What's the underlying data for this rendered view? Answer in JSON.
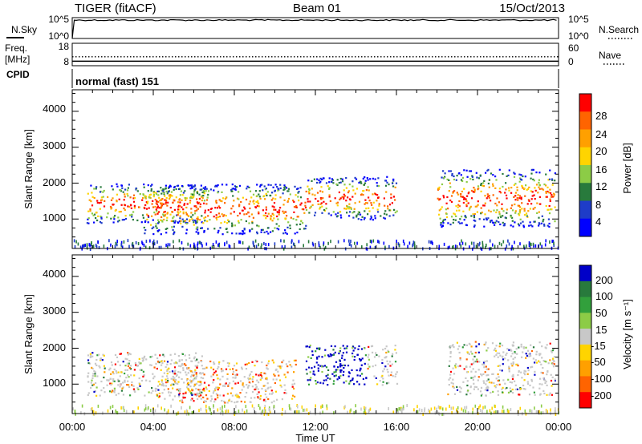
{
  "header": {
    "station": "TIGER (fitACF)",
    "beam": "Beam 01",
    "date": "15/Oct/2013"
  },
  "noise_panel": {
    "left_label": "N.Sky",
    "right_label": "N.Search",
    "left_ticks": [
      "10^5",
      "10^0"
    ],
    "right_ticks": [
      "10^5",
      "10^0"
    ]
  },
  "freq_panel": {
    "left_label_line1": "Freq.",
    "left_label_line2": "[MHz]",
    "left_ticks": [
      "18",
      "8"
    ],
    "right_label": "Nave",
    "right_ticks": [
      "60",
      "0"
    ]
  },
  "cpid_panel": {
    "label": "CPID",
    "text": "normal (fast) 151"
  },
  "x_axis": {
    "label": "Time UT",
    "ticks": [
      "00:00",
      "04:00",
      "08:00",
      "12:00",
      "16:00",
      "20:00",
      "00:00"
    ]
  },
  "power_panel": {
    "ylabel": "Slant Range [km]",
    "yticks": [
      "4000",
      "3000",
      "2000",
      "1000"
    ],
    "colorbar_label": "Power [dB]",
    "colorbar_ticks": [
      "28",
      "24",
      "20",
      "16",
      "12",
      "8",
      "4"
    ],
    "colorbar_colors": [
      "#ff0000",
      "#ff6400",
      "#ffa000",
      "#ffd400",
      "#8ccc46",
      "#287a3c",
      "#1e3cc8",
      "#0000ff"
    ]
  },
  "velocity_panel": {
    "ylabel": "Slant Range [km]",
    "yticks": [
      "4000",
      "3000",
      "2000",
      "1000"
    ],
    "colorbar_label": "Velocity [m s⁻¹]",
    "colorbar_ticks": [
      "200",
      "100",
      "50",
      "15",
      "-15",
      "-50",
      "-100",
      "-200"
    ],
    "colorbar_colors": [
      "#0000c8",
      "#287a3c",
      "#32a03c",
      "#8ccc46",
      "#c8c8c8",
      "#ffd400",
      "#ffa000",
      "#ff6400",
      "#ff0000"
    ]
  },
  "chart_data": [
    {
      "type": "line",
      "title": "N.Sky / N.Search",
      "xlabel": "Time UT",
      "x_range_hours": [
        0,
        24
      ],
      "ylim_log10": [
        0,
        5
      ],
      "series": [
        {
          "name": "N.Sky",
          "x": [
            0,
            0.1,
            24
          ],
          "values": [
            0,
            4.4,
            4.4
          ]
        }
      ]
    },
    {
      "type": "line",
      "title": "Freq. / Nave",
      "x_range_hours": [
        0,
        24
      ],
      "freq_ylim": [
        8,
        18
      ],
      "nave_ylim": [
        0,
        60
      ],
      "series": [
        {
          "name": "Freq.",
          "x": [
            0,
            24
          ],
          "values": [
            10,
            10
          ]
        },
        {
          "name": "Nave",
          "x": [
            0,
            24
          ],
          "values": [
            24,
            24
          ]
        }
      ]
    },
    {
      "type": "heatmap",
      "title": "Power [dB]",
      "ylabel": "Slant Range [km]",
      "x_range_hours": [
        0,
        24
      ],
      "ylim": [
        180,
        4600
      ],
      "value_range": [
        0,
        30
      ],
      "scatter_regions": [
        {
          "t0": 0.7,
          "t1": 6.5,
          "r0": 900,
          "r1": 2000
        },
        {
          "t0": 3.5,
          "t1": 11.5,
          "r0": 600,
          "r1": 2000
        },
        {
          "t0": 11.5,
          "t1": 16.0,
          "r0": 1000,
          "r1": 2200
        },
        {
          "t0": 18.0,
          "t1": 23.8,
          "r0": 800,
          "r1": 2400
        }
      ]
    },
    {
      "type": "heatmap",
      "title": "Velocity [m s⁻¹]",
      "ylabel": "Slant Range [km]",
      "x_range_hours": [
        0,
        24
      ],
      "ylim": [
        180,
        4600
      ],
      "value_range": [
        -250,
        250
      ],
      "scatter_regions": [
        {
          "t0": 0.7,
          "t1": 6.5,
          "r0": 700,
          "r1": 1900
        },
        {
          "t0": 4.0,
          "t1": 11.0,
          "r0": 500,
          "r1": 1700
        },
        {
          "t0": 11.5,
          "t1": 16.0,
          "r0": 1000,
          "r1": 2100
        },
        {
          "t0": 18.5,
          "t1": 23.8,
          "r0": 700,
          "r1": 2200
        }
      ]
    }
  ]
}
